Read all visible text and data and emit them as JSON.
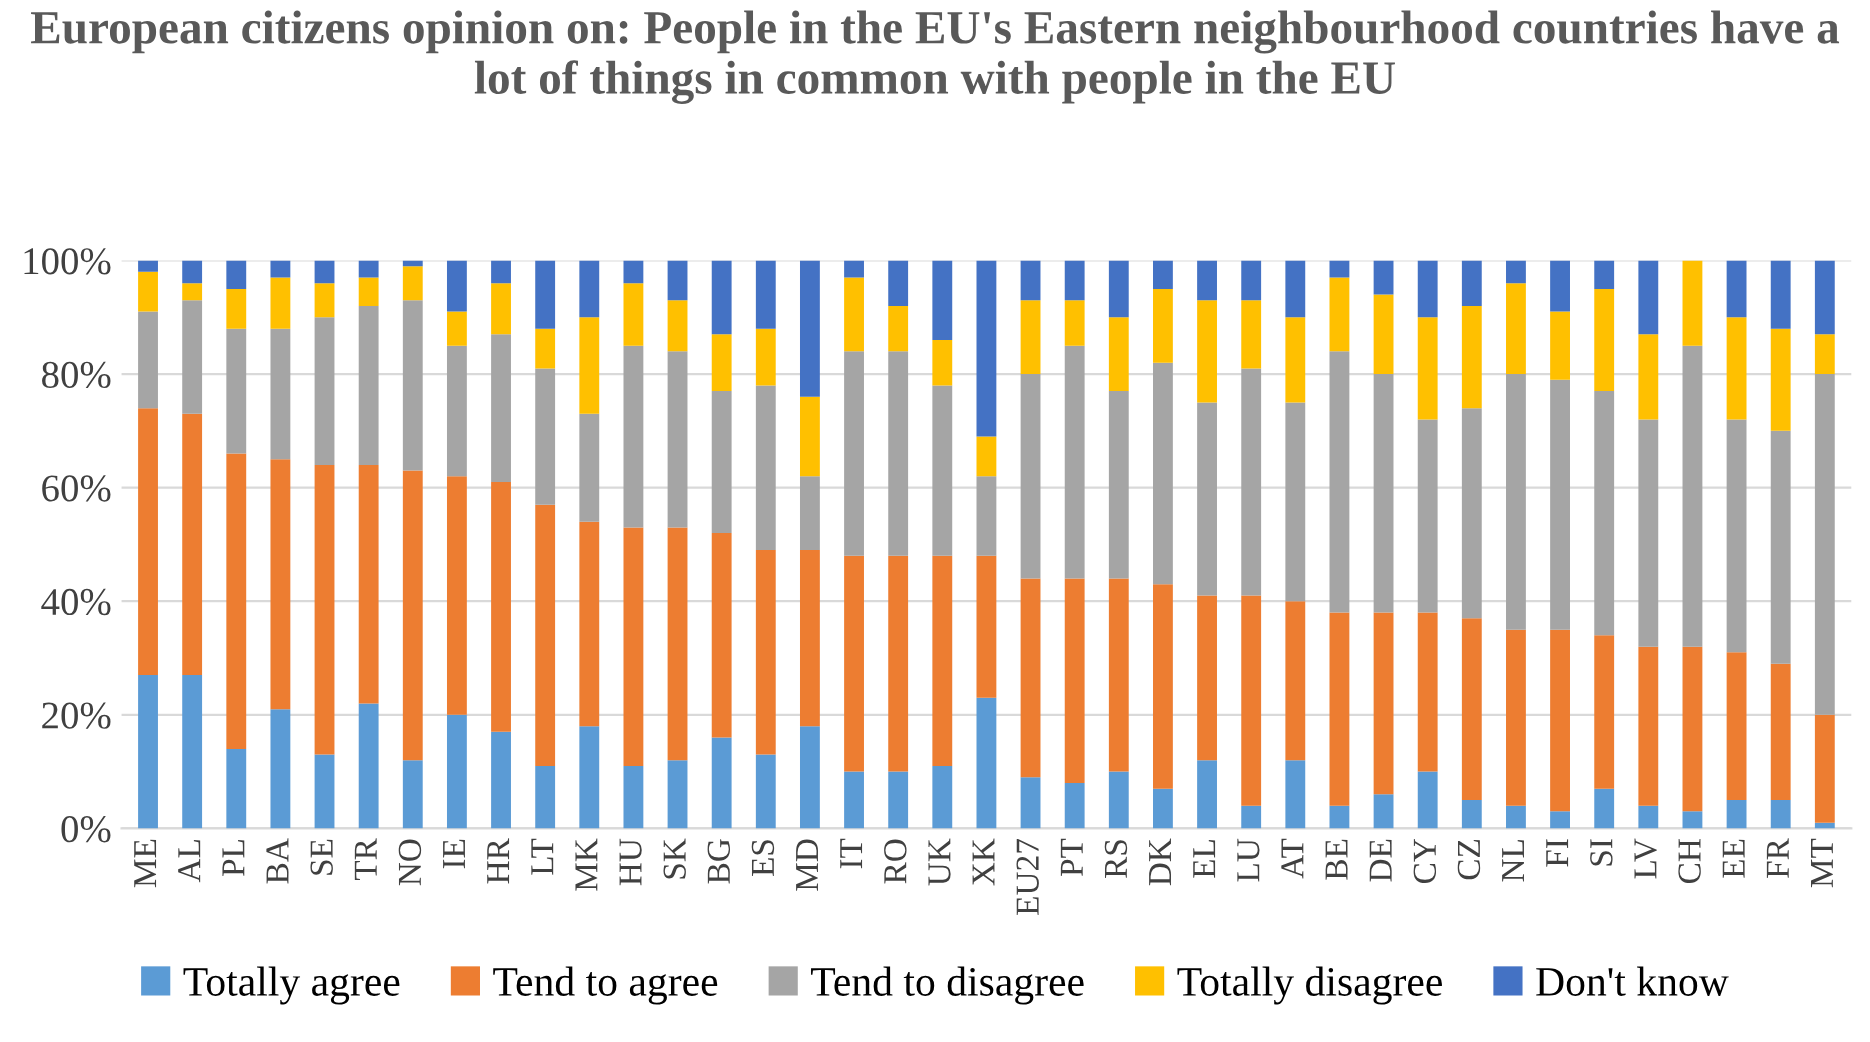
{
  "chart_data": {
    "type": "bar",
    "stacked": true,
    "title": "European citizens opinion on: People in the EU's Eastern neighbourhood countries have a lot of things in common with people in the EU",
    "categories": [
      "ME",
      "AL",
      "PL",
      "BA",
      "SE",
      "TR",
      "NO",
      "IE",
      "HR",
      "LT",
      "MK",
      "HU",
      "SK",
      "BG",
      "ES",
      "MD",
      "IT",
      "RO",
      "UK",
      "XK",
      "EU27",
      "PT",
      "RS",
      "DK",
      "EL",
      "LU",
      "AT",
      "BE",
      "DE",
      "CY",
      "CZ",
      "NL",
      "FI",
      "SI",
      "LV",
      "CH",
      "EE",
      "FR",
      "MT"
    ],
    "series": [
      {
        "name": "Totally agree",
        "color": "#5b9bd5",
        "values": [
          27,
          27,
          14,
          21,
          13,
          22,
          12,
          20,
          17,
          11,
          18,
          11,
          12,
          16,
          13,
          18,
          10,
          10,
          11,
          23,
          9,
          8,
          10,
          7,
          12,
          4,
          12,
          4,
          6,
          10,
          5,
          4,
          3,
          7,
          4,
          3,
          5,
          5,
          1
        ]
      },
      {
        "name": "Tend to agree",
        "color": "#ed7d31",
        "values": [
          47,
          46,
          52,
          44,
          51,
          42,
          51,
          42,
          44,
          46,
          36,
          42,
          41,
          36,
          36,
          31,
          38,
          38,
          37,
          25,
          35,
          36,
          34,
          36,
          29,
          37,
          28,
          34,
          32,
          28,
          32,
          31,
          32,
          27,
          28,
          29,
          26,
          24,
          19
        ]
      },
      {
        "name": "Tend to disagree",
        "color": "#a5a5a5",
        "values": [
          17,
          20,
          22,
          23,
          26,
          28,
          30,
          23,
          26,
          24,
          19,
          32,
          31,
          25,
          29,
          13,
          36,
          36,
          30,
          14,
          36,
          41,
          33,
          39,
          34,
          40,
          35,
          46,
          42,
          34,
          37,
          45,
          44,
          43,
          40,
          53,
          41,
          41,
          60
        ]
      },
      {
        "name": "Totally disagree",
        "color": "#ffc000",
        "values": [
          7,
          3,
          7,
          9,
          6,
          5,
          6,
          6,
          9,
          7,
          17,
          11,
          9,
          10,
          10,
          14,
          13,
          8,
          8,
          7,
          13,
          8,
          13,
          13,
          18,
          12,
          15,
          13,
          14,
          18,
          18,
          16,
          12,
          18,
          15,
          15,
          18,
          18,
          7
        ]
      },
      {
        "name": "Don't know",
        "color": "#4472c4",
        "values": [
          2,
          4,
          5,
          3,
          4,
          3,
          1,
          9,
          4,
          12,
          10,
          4,
          7,
          13,
          12,
          24,
          3,
          8,
          14,
          31,
          7,
          7,
          10,
          5,
          7,
          7,
          10,
          3,
          6,
          10,
          8,
          4,
          9,
          5,
          13,
          0,
          10,
          12,
          13
        ]
      }
    ],
    "ylim": [
      0,
      100
    ],
    "yticks": [
      {
        "value": 0,
        "label": "0%"
      },
      {
        "value": 20,
        "label": "20%"
      },
      {
        "value": 40,
        "label": "40%"
      },
      {
        "value": 60,
        "label": "60%"
      },
      {
        "value": 80,
        "label": "80%"
      },
      {
        "value": 100,
        "label": "100%"
      }
    ],
    "grid": "y",
    "legend": "bottom"
  }
}
